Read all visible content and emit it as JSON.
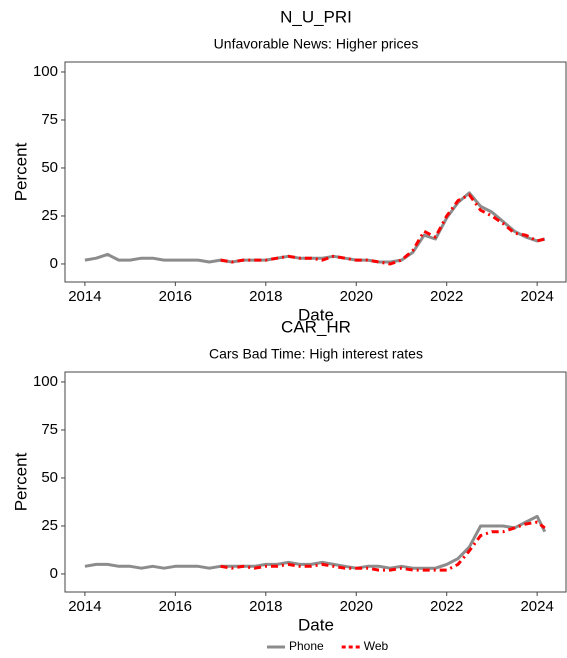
{
  "chart_data": [
    {
      "type": "line",
      "title": "N_U_PRI",
      "subtitle": "Unfavorable News: Higher prices",
      "x_label": "Date",
      "y_label": "Percent",
      "x": [
        2014,
        2014.25,
        2014.5,
        2014.75,
        2015,
        2015.25,
        2015.5,
        2015.75,
        2016,
        2016.25,
        2016.5,
        2016.75,
        2017,
        2017.25,
        2017.5,
        2017.75,
        2018,
        2018.25,
        2018.5,
        2018.75,
        2019,
        2019.25,
        2019.5,
        2019.75,
        2020,
        2020.25,
        2020.5,
        2020.75,
        2021,
        2021.25,
        2021.5,
        2021.75,
        2022,
        2022.25,
        2022.5,
        2022.75,
        2023,
        2023.25,
        2023.5,
        2023.75,
        2024,
        2024.17
      ],
      "series": [
        {
          "name": "Phone",
          "color": "#8c8c8c",
          "values": [
            2,
            3,
            5,
            2,
            2,
            3,
            3,
            2,
            2,
            2,
            2,
            1,
            2,
            1,
            2,
            2,
            2,
            3,
            4,
            3,
            3,
            3,
            4,
            3,
            2,
            2,
            1,
            1,
            2,
            6,
            15,
            13,
            24,
            32,
            37,
            30,
            27,
            22,
            17,
            14,
            12,
            13
          ]
        },
        {
          "name": "Web",
          "color": "#ff0000",
          "dash": true,
          "values": [
            null,
            null,
            null,
            null,
            null,
            null,
            null,
            null,
            null,
            null,
            null,
            null,
            2,
            1,
            2,
            2,
            2,
            3,
            4,
            3,
            3,
            2,
            4,
            3,
            2,
            2,
            1,
            0,
            2,
            7,
            17,
            14,
            25,
            33,
            36,
            28,
            25,
            21,
            16,
            15,
            12,
            13
          ]
        }
      ],
      "xlim": [
        2013.56,
        2024.66
      ],
      "xticks": [
        2014,
        2016,
        2018,
        2020,
        2022,
        2024
      ],
      "ylim": [
        -9.4,
        105.2
      ],
      "yticks": [
        0,
        25,
        50,
        75,
        100
      ]
    },
    {
      "type": "line",
      "title": "CAR_HR",
      "subtitle": "Cars Bad Time: High interest rates",
      "x_label": "Date",
      "y_label": "Percent",
      "x": [
        2014,
        2014.25,
        2014.5,
        2014.75,
        2015,
        2015.25,
        2015.5,
        2015.75,
        2016,
        2016.25,
        2016.5,
        2016.75,
        2017,
        2017.25,
        2017.5,
        2017.75,
        2018,
        2018.25,
        2018.5,
        2018.75,
        2019,
        2019.25,
        2019.5,
        2019.75,
        2020,
        2020.25,
        2020.5,
        2020.75,
        2021,
        2021.25,
        2021.5,
        2021.75,
        2022,
        2022.25,
        2022.5,
        2022.75,
        2023,
        2023.25,
        2023.5,
        2023.75,
        2024,
        2024.17
      ],
      "series": [
        {
          "name": "Phone",
          "color": "#8c8c8c",
          "values": [
            4,
            5,
            5,
            4,
            4,
            3,
            4,
            3,
            4,
            4,
            4,
            3,
            4,
            4,
            4,
            4,
            5,
            5,
            6,
            5,
            5,
            6,
            5,
            4,
            3,
            4,
            4,
            3,
            4,
            3,
            3,
            3,
            5,
            8,
            14,
            25,
            25,
            25,
            24,
            27,
            30,
            22
          ]
        },
        {
          "name": "Web",
          "color": "#ff0000",
          "dash": true,
          "values": [
            null,
            null,
            null,
            null,
            null,
            null,
            null,
            null,
            null,
            null,
            null,
            null,
            4,
            3,
            4,
            3,
            4,
            4,
            5,
            4,
            4,
            5,
            4,
            3,
            3,
            3,
            2,
            2,
            3,
            2,
            2,
            2,
            2,
            5,
            12,
            20,
            22,
            22,
            24,
            26,
            27,
            24
          ]
        }
      ],
      "xlim": [
        2013.56,
        2024.66
      ],
      "xticks": [
        2014,
        2016,
        2018,
        2020,
        2022,
        2024
      ],
      "ylim": [
        -9.4,
        105.2
      ],
      "yticks": [
        0,
        25,
        50,
        75,
        100
      ]
    }
  ]
}
